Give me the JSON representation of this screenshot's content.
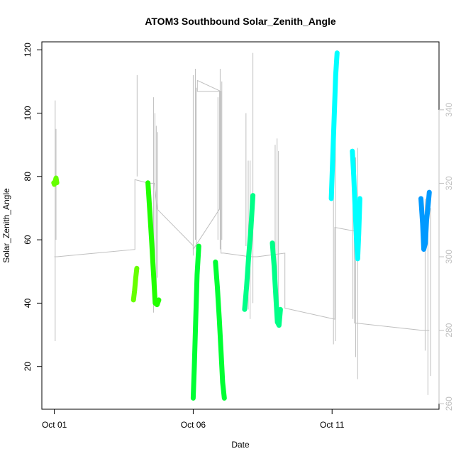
{
  "chart_data": {
    "type": "line",
    "title": "ATOM3 Southbound Solar_Zenith_Angle",
    "xlabel": "Date",
    "ylabel": "Solar_Zenith_Angle",
    "x_ticks": [
      "Oct 01",
      "Oct 06",
      "Oct 11"
    ],
    "x_tick_days": [
      1,
      6,
      11
    ],
    "xlim_days": [
      0.55,
      14.85
    ],
    "y_ticks": [
      20,
      40,
      60,
      80,
      100,
      120
    ],
    "ylim": [
      6.5,
      122.5
    ],
    "y2_ticks": [
      260,
      280,
      300,
      320,
      340
    ],
    "y2lim": [
      258.5,
      358.5
    ],
    "colors": {
      "axis": "#000000",
      "secondary_axis": "#bfbfbf",
      "background_trace": "#bfbfbf",
      "green_yellow": "#66ff00",
      "lime": "#22ff00",
      "green": "#00ff33",
      "spring_green": "#00ff88",
      "cyan": "#00ffff",
      "azure": "#0099ff"
    },
    "secondary_trace": [
      [
        1.0,
        300
      ],
      [
        1.05,
        300
      ],
      [
        1.1,
        300
      ],
      [
        3.9,
        302
      ],
      [
        3.9,
        321
      ],
      [
        4.4,
        320
      ],
      [
        4.6,
        320
      ],
      [
        4.7,
        313
      ],
      [
        6.0,
        303
      ],
      [
        6.0,
        302
      ],
      [
        6.95,
        313
      ],
      [
        6.95,
        345
      ],
      [
        7.0,
        345
      ],
      [
        6.15,
        348
      ],
      [
        6.15,
        345
      ],
      [
        7.0,
        345
      ],
      [
        7.0,
        301
      ],
      [
        7.1,
        301
      ],
      [
        8.05,
        300
      ],
      [
        8.3,
        300
      ],
      [
        9.3,
        301
      ],
      [
        9.3,
        286
      ],
      [
        11.1,
        283
      ],
      [
        11.1,
        308
      ],
      [
        11.8,
        307
      ],
      [
        11.8,
        282
      ],
      [
        14.2,
        280
      ],
      [
        14.5,
        280
      ]
    ],
    "background_spikes": [
      {
        "day": 1.03,
        "top": 104,
        "bottom": 28
      },
      {
        "day": 1.06,
        "top": 95,
        "bottom": 60
      },
      {
        "day": 3.98,
        "top": 112,
        "bottom": 80
      },
      {
        "day": 4.57,
        "top": 105,
        "bottom": 37
      },
      {
        "day": 4.62,
        "top": 100,
        "bottom": 40
      },
      {
        "day": 4.67,
        "top": 96,
        "bottom": 42
      },
      {
        "day": 4.72,
        "top": 94,
        "bottom": 48
      },
      {
        "day": 6.0,
        "top": 112,
        "bottom": 55
      },
      {
        "day": 6.08,
        "top": 114,
        "bottom": 60
      },
      {
        "day": 6.11,
        "top": 108,
        "bottom": 57
      },
      {
        "day": 6.89,
        "top": 105,
        "bottom": 60
      },
      {
        "day": 6.97,
        "top": 114,
        "bottom": 57
      },
      {
        "day": 7.03,
        "top": 110,
        "bottom": 60
      },
      {
        "day": 7.9,
        "top": 100,
        "bottom": 58
      },
      {
        "day": 7.98,
        "top": 85,
        "bottom": 38
      },
      {
        "day": 8.05,
        "top": 85,
        "bottom": 35
      },
      {
        "day": 8.15,
        "top": 119,
        "bottom": 40
      },
      {
        "day": 8.95,
        "top": 90,
        "bottom": 40
      },
      {
        "day": 9.02,
        "top": 92,
        "bottom": 35
      },
      {
        "day": 9.07,
        "top": 88,
        "bottom": 37
      },
      {
        "day": 11.05,
        "top": 78,
        "bottom": 27
      },
      {
        "day": 11.12,
        "top": 105,
        "bottom": 28
      },
      {
        "day": 11.75,
        "top": 88,
        "bottom": 35
      },
      {
        "day": 11.85,
        "top": 86,
        "bottom": 23
      },
      {
        "day": 11.92,
        "top": 89,
        "bottom": 16
      },
      {
        "day": 14.35,
        "top": 73,
        "bottom": 25
      },
      {
        "day": 14.45,
        "top": 71,
        "bottom": 11
      },
      {
        "day": 14.55,
        "top": 70,
        "bottom": 17
      }
    ],
    "series": [
      {
        "color": "green_yellow",
        "points": [
          [
            0.98,
            78
          ],
          [
            1.0,
            77.5
          ],
          [
            1.03,
            78.5
          ],
          [
            1.06,
            79.5
          ],
          [
            1.09,
            78
          ]
        ]
      },
      {
        "color": "green_yellow",
        "points": [
          [
            3.85,
            41
          ],
          [
            3.89,
            44
          ],
          [
            3.93,
            48
          ],
          [
            3.97,
            51
          ]
        ]
      },
      {
        "color": "lime",
        "points": [
          [
            4.37,
            78
          ],
          [
            4.43,
            70
          ],
          [
            4.5,
            60
          ],
          [
            4.58,
            48
          ],
          [
            4.63,
            40
          ],
          [
            4.7,
            39.5
          ],
          [
            4.76,
            41
          ]
        ]
      },
      {
        "color": "green",
        "points": [
          [
            6.0,
            10
          ],
          [
            6.04,
            20
          ],
          [
            6.09,
            35
          ],
          [
            6.14,
            49
          ],
          [
            6.2,
            58
          ]
        ]
      },
      {
        "color": "green",
        "points": [
          [
            6.8,
            53
          ],
          [
            6.87,
            45
          ],
          [
            6.94,
            35
          ],
          [
            7.0,
            25
          ],
          [
            7.06,
            15
          ],
          [
            7.12,
            10
          ]
        ]
      },
      {
        "color": "spring_green",
        "points": [
          [
            7.85,
            38
          ],
          [
            7.92,
            45
          ],
          [
            8.0,
            55
          ],
          [
            8.08,
            64
          ],
          [
            8.15,
            74
          ]
        ]
      },
      {
        "color": "spring_green",
        "points": [
          [
            8.85,
            59
          ],
          [
            8.91,
            52
          ],
          [
            8.97,
            43
          ],
          [
            9.03,
            34
          ],
          [
            9.09,
            33
          ],
          [
            9.14,
            38
          ]
        ]
      },
      {
        "color": "cyan",
        "points": [
          [
            10.97,
            73
          ],
          [
            11.02,
            85
          ],
          [
            11.08,
            100
          ],
          [
            11.13,
            112
          ],
          [
            11.18,
            119
          ]
        ]
      },
      {
        "color": "cyan",
        "points": [
          [
            11.73,
            88
          ],
          [
            11.78,
            80
          ],
          [
            11.83,
            70
          ],
          [
            11.88,
            60
          ],
          [
            11.92,
            54
          ],
          [
            11.96,
            62
          ],
          [
            12.0,
            73
          ]
        ]
      },
      {
        "color": "azure",
        "points": [
          [
            14.2,
            73
          ],
          [
            14.26,
            65
          ],
          [
            14.3,
            57
          ],
          [
            14.36,
            59
          ],
          [
            14.4,
            66
          ],
          [
            14.45,
            70
          ],
          [
            14.5,
            75
          ]
        ]
      }
    ]
  }
}
